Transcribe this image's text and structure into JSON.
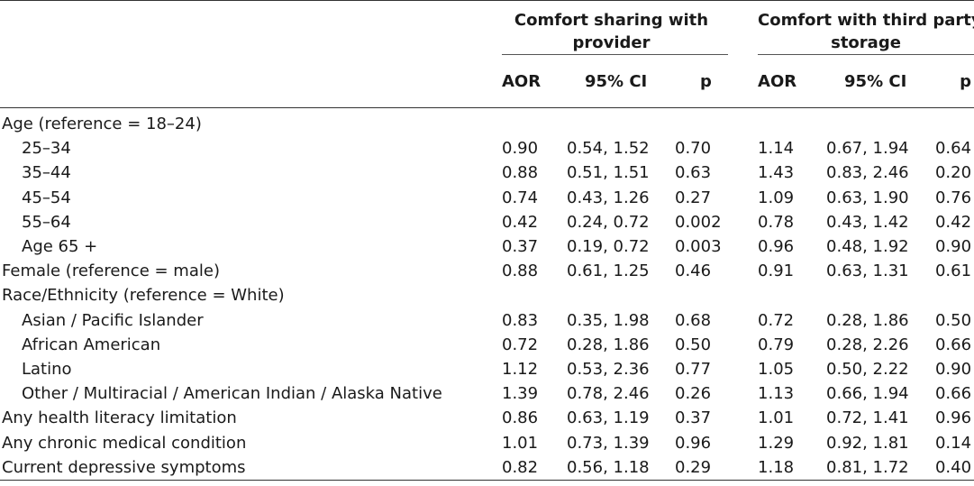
{
  "header": {
    "group1": [
      "Comfort sharing with",
      "provider"
    ],
    "group2": [
      "Comfort with third party",
      "storage"
    ],
    "columns": [
      "AOR",
      "95% CI",
      "p",
      "AOR",
      "95% CI",
      "p"
    ]
  },
  "rows": [
    {
      "label": "Age (reference = 18–24)",
      "indent": false,
      "cells": [
        "",
        "",
        "",
        "",
        "",
        ""
      ]
    },
    {
      "label": "25–34",
      "indent": true,
      "cells": [
        "0.90",
        "0.54, 1.52",
        "0.70",
        "1.14",
        "0.67, 1.94",
        "0.64"
      ]
    },
    {
      "label": "35–44",
      "indent": true,
      "cells": [
        "0.88",
        "0.51, 1.51",
        "0.63",
        "1.43",
        "0.83, 2.46",
        "0.20"
      ]
    },
    {
      "label": "45–54",
      "indent": true,
      "cells": [
        "0.74",
        "0.43, 1.26",
        "0.27",
        "1.09",
        "0.63, 1.90",
        "0.76"
      ]
    },
    {
      "label": "55–64",
      "indent": true,
      "cells": [
        "0.42",
        "0.24, 0.72",
        "0.002",
        "0.78",
        "0.43, 1.42",
        "0.42"
      ]
    },
    {
      "label": "Age 65 +",
      "indent": true,
      "cells": [
        "0.37",
        "0.19, 0.72",
        "0.003",
        "0.96",
        "0.48, 1.92",
        "0.90"
      ]
    },
    {
      "label": "Female (reference = male)",
      "indent": false,
      "cells": [
        "0.88",
        "0.61, 1.25",
        "0.46",
        "0.91",
        "0.63, 1.31",
        "0.61"
      ]
    },
    {
      "label": "Race/Ethnicity (reference = White)",
      "indent": false,
      "cells": [
        "",
        "",
        "",
        "",
        "",
        ""
      ]
    },
    {
      "label": "Asian / Pacific Islander",
      "indent": true,
      "cells": [
        "0.83",
        "0.35, 1.98",
        "0.68",
        "0.72",
        "0.28, 1.86",
        "0.50"
      ]
    },
    {
      "label": "African American",
      "indent": true,
      "cells": [
        "0.72",
        "0.28, 1.86",
        "0.50",
        "0.79",
        "0.28, 2.26",
        "0.66"
      ]
    },
    {
      "label": "Latino",
      "indent": true,
      "cells": [
        "1.12",
        "0.53, 2.36",
        "0.77",
        "1.05",
        "0.50, 2.22",
        "0.90"
      ]
    },
    {
      "label": "Other / Multiracial / American Indian / Alaska Native",
      "indent": true,
      "cells": [
        "1.39",
        "0.78, 2.46",
        "0.26",
        "1.13",
        "0.66, 1.94",
        "0.66"
      ]
    },
    {
      "label": "Any health literacy limitation",
      "indent": false,
      "cells": [
        "0.86",
        "0.63, 1.19",
        "0.37",
        "1.01",
        "0.72, 1.41",
        "0.96"
      ]
    },
    {
      "label": "Any chronic medical condition",
      "indent": false,
      "cells": [
        "1.01",
        "0.73, 1.39",
        "0.96",
        "1.29",
        "0.92, 1.81",
        "0.14"
      ]
    },
    {
      "label": "Current depressive symptoms",
      "indent": false,
      "cells": [
        "0.82",
        "0.56, 1.18",
        "0.29",
        "1.18",
        "0.81, 1.72",
        "0.40"
      ]
    }
  ]
}
